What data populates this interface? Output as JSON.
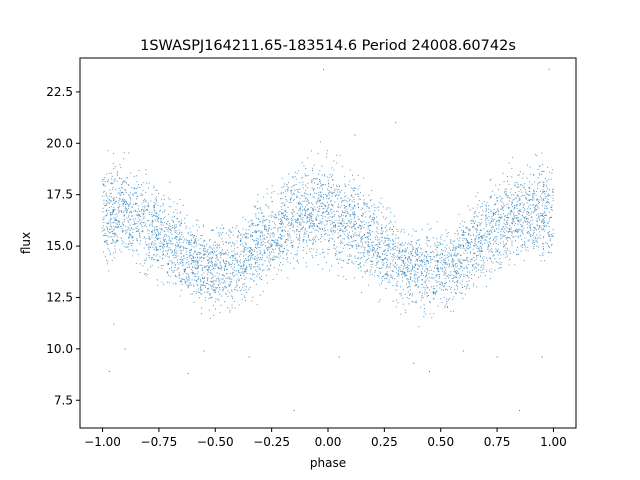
{
  "chart_data": {
    "type": "scatter",
    "title": "1SWASPJ164211.65-183514.6 Period 24008.60742s",
    "xlabel": "phase",
    "ylabel": "flux",
    "xlim": [
      -1.1,
      1.1
    ],
    "ylim": [
      6.15,
      24.15
    ],
    "xticks": [
      -1.0,
      -0.75,
      -0.5,
      -0.25,
      0.0,
      0.25,
      0.5,
      0.75,
      1.0
    ],
    "xtick_labels": [
      "−1.00",
      "−0.75",
      "−0.50",
      "−0.25",
      "0.00",
      "0.25",
      "0.50",
      "0.75",
      "1.00"
    ],
    "yticks": [
      7.5,
      10.0,
      12.5,
      15.0,
      17.5,
      20.0,
      22.5
    ],
    "ytick_labels": [
      "7.5",
      "10.0",
      "12.5",
      "15.0",
      "17.5",
      "20.0",
      "22.5"
    ],
    "grid": false,
    "legend": "none",
    "marker_color": "#1f77b4",
    "series": [
      {
        "values_note": "",
        "x": [
          -1.0,
          -0.95,
          -0.9,
          -0.85,
          -0.8,
          -0.75,
          -0.7,
          -0.65,
          -0.6,
          -0.55,
          -0.5,
          -0.45,
          -0.4,
          -0.35,
          -0.3,
          -0.25,
          -0.2,
          -0.15,
          -0.1,
          -0.05,
          0.0,
          0.05,
          0.1,
          0.15,
          0.2,
          0.25,
          0.3,
          0.35,
          0.4,
          0.45,
          0.5,
          0.55,
          0.6,
          0.65,
          0.7,
          0.75,
          0.8,
          0.85,
          0.9,
          0.95,
          1.0
        ],
        "y_center": [
          16.6,
          16.7,
          16.6,
          16.3,
          16.0,
          15.6,
          15.2,
          14.7,
          14.3,
          14.0,
          13.8,
          13.9,
          14.2,
          14.6,
          15.1,
          15.6,
          16.0,
          16.4,
          16.6,
          16.7,
          16.6,
          16.4,
          16.1,
          15.7,
          15.2,
          14.8,
          14.4,
          14.1,
          13.9,
          13.8,
          13.9,
          14.2,
          14.6,
          15.1,
          15.6,
          16.0,
          16.3,
          16.6,
          16.7,
          16.6,
          16.6
        ],
        "y_upper": [
          20.0,
          20.2,
          20.0,
          19.6,
          19.2,
          18.7,
          18.2,
          17.6,
          17.1,
          16.7,
          16.5,
          16.6,
          17.0,
          17.5,
          18.0,
          18.6,
          19.2,
          19.7,
          20.0,
          20.2,
          20.2,
          19.9,
          19.5,
          19.0,
          18.4,
          17.8,
          17.2,
          16.8,
          16.5,
          16.4,
          16.5,
          16.9,
          17.4,
          18.0,
          18.6,
          19.1,
          19.6,
          19.9,
          20.1,
          20.2,
          20.0
        ],
        "y_lower": [
          13.3,
          13.2,
          13.2,
          12.9,
          12.7,
          12.4,
          12.1,
          11.7,
          11.3,
          11.0,
          10.8,
          10.9,
          11.2,
          11.6,
          12.1,
          12.6,
          13.0,
          13.3,
          13.4,
          13.3,
          13.2,
          13.1,
          12.8,
          12.5,
          12.1,
          11.7,
          11.4,
          11.1,
          10.9,
          10.8,
          10.9,
          11.2,
          11.6,
          12.1,
          12.6,
          13.0,
          13.2,
          13.4,
          13.4,
          13.3,
          13.3
        ],
        "outliers": [
          [
            -0.97,
            8.9
          ],
          [
            -0.95,
            11.2
          ],
          [
            -0.9,
            10.0
          ],
          [
            -0.62,
            8.8
          ],
          [
            -0.55,
            9.9
          ],
          [
            -0.35,
            9.6
          ],
          [
            -0.15,
            7.0
          ],
          [
            -0.02,
            23.6
          ],
          [
            0.05,
            9.6
          ],
          [
            0.12,
            20.4
          ],
          [
            0.3,
            21.0
          ],
          [
            0.38,
            9.3
          ],
          [
            0.45,
            8.9
          ],
          [
            0.6,
            9.9
          ],
          [
            0.75,
            9.6
          ],
          [
            0.85,
            7.0
          ],
          [
            0.98,
            23.6
          ],
          [
            0.95,
            9.6
          ]
        ]
      }
    ]
  }
}
